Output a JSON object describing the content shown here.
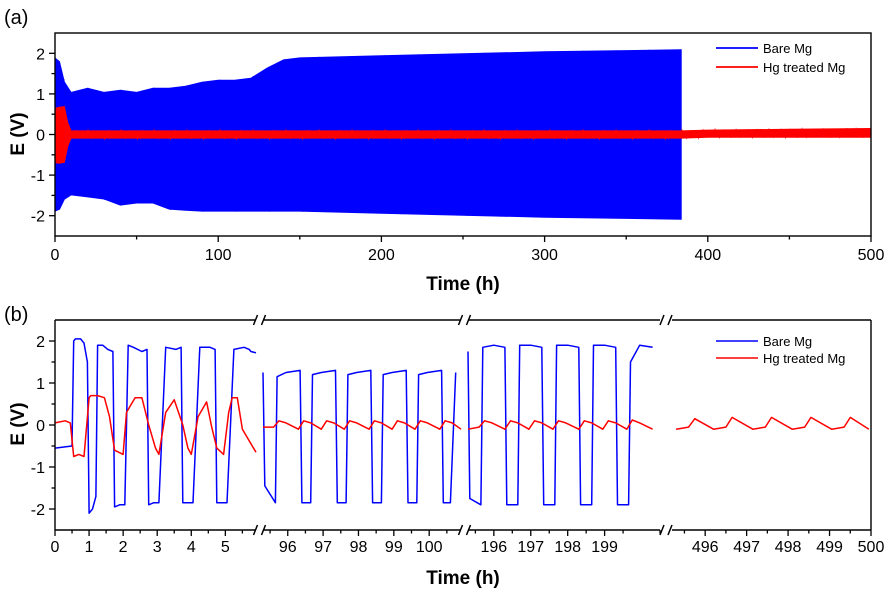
{
  "figure": {
    "panel_a_label": "(a)",
    "panel_b_label": "(b)"
  },
  "chart_data": [
    {
      "type": "line",
      "panel": "(a)",
      "xlabel": "Time (h)",
      "ylabel": "E (V)",
      "xlim": [
        0,
        500
      ],
      "ylim": [
        -2.5,
        2.5
      ],
      "x_ticks": [
        "0",
        "100",
        "200",
        "300",
        "400",
        "500"
      ],
      "y_ticks": [
        "-2",
        "-1",
        "0",
        "1",
        "2"
      ],
      "legend_position": "top-right",
      "series": [
        {
          "name": "Bare Mg",
          "color": "#0000ff",
          "style": "dense oscillation envelope",
          "x": [
            0,
            3,
            6,
            10,
            20,
            30,
            40,
            50,
            60,
            70,
            80,
            90,
            100,
            110,
            120,
            130,
            140,
            150,
            200,
            250,
            300,
            350,
            384
          ],
          "upper": [
            1.9,
            1.8,
            1.3,
            1.05,
            1.15,
            1.05,
            1.1,
            1.05,
            1.15,
            1.15,
            1.2,
            1.3,
            1.35,
            1.35,
            1.4,
            1.65,
            1.85,
            1.9,
            1.95,
            2.0,
            2.05,
            2.08,
            2.1
          ],
          "lower": [
            -1.9,
            -1.85,
            -1.6,
            -1.5,
            -1.55,
            -1.6,
            -1.75,
            -1.7,
            -1.7,
            -1.85,
            -1.88,
            -1.9,
            -1.9,
            -1.9,
            -1.9,
            -1.9,
            -1.9,
            -1.9,
            -1.95,
            -2.0,
            -2.05,
            -2.08,
            -2.1
          ]
        },
        {
          "name": "Hg treated Mg",
          "color": "#ff0000",
          "style": "dense oscillation envelope",
          "x": [
            0,
            2,
            6,
            8,
            10,
            50,
            100,
            200,
            300,
            384,
            400,
            450,
            500
          ],
          "upper": [
            0.65,
            0.68,
            0.7,
            0.3,
            0.1,
            0.1,
            0.1,
            0.1,
            0.1,
            0.1,
            0.12,
            0.14,
            0.16
          ],
          "lower": [
            -0.7,
            -0.72,
            -0.7,
            -0.3,
            -0.1,
            -0.1,
            -0.1,
            -0.1,
            -0.1,
            -0.1,
            -0.08,
            -0.08,
            -0.08
          ]
        }
      ]
    },
    {
      "type": "line",
      "panel": "(b)",
      "xlabel": "Time (h)",
      "ylabel": "E (V)",
      "ylim": [
        -2.5,
        2.5
      ],
      "y_ticks": [
        "-2",
        "-1",
        "0",
        "1",
        "2"
      ],
      "broken_x_axis": true,
      "legend_position": "top-right",
      "segments": [
        {
          "xlim": [
            0,
            5.9
          ],
          "x_ticks": [
            0,
            1,
            2,
            3,
            4,
            5
          ],
          "x_tick_labels": [
            "0",
            "1",
            "2",
            "3",
            "4",
            "5"
          ],
          "series": {
            "Bare Mg": {
              "x": [
                0,
                0.5,
                0.55,
                0.6,
                0.75,
                0.85,
                0.95,
                1.0,
                1.1,
                1.2,
                1.25,
                1.4,
                1.55,
                1.7,
                1.75,
                1.9,
                2.05,
                2.15,
                2.3,
                2.55,
                2.7,
                2.75,
                2.9,
                3.05,
                3.25,
                3.55,
                3.7,
                3.75,
                3.9,
                4.05,
                4.25,
                4.55,
                4.7,
                4.75,
                4.9,
                5.05,
                5.25,
                5.55,
                5.7,
                5.75,
                5.9
              ],
              "y": [
                -0.55,
                -0.5,
                2.0,
                2.05,
                2.05,
                1.95,
                1.5,
                -2.1,
                -2.0,
                -1.7,
                1.9,
                1.9,
                1.8,
                1.75,
                -1.95,
                -1.9,
                -1.9,
                1.9,
                1.85,
                1.75,
                1.8,
                -1.9,
                -1.85,
                -1.85,
                1.85,
                1.8,
                1.85,
                -1.85,
                -1.85,
                -1.85,
                1.85,
                1.85,
                1.8,
                -1.85,
                -1.85,
                -1.85,
                1.8,
                1.85,
                1.8,
                1.75,
                1.72
              ]
            },
            "Hg treated Mg": {
              "x": [
                0,
                0.3,
                0.45,
                0.55,
                0.7,
                0.85,
                1.0,
                1.05,
                1.25,
                1.45,
                1.6,
                1.75,
                2.0,
                2.1,
                2.35,
                2.55,
                2.75,
                2.95,
                3.05,
                3.25,
                3.5,
                3.75,
                3.9,
                4.0,
                4.2,
                4.45,
                4.6,
                4.75,
                4.95,
                5.1,
                5.2,
                5.35,
                5.5,
                5.9
              ],
              "y": [
                0.05,
                0.1,
                0.05,
                -0.75,
                -0.7,
                -0.75,
                0.65,
                0.7,
                0.7,
                0.65,
                0.2,
                -0.6,
                -0.7,
                0.3,
                0.65,
                0.65,
                0.0,
                -0.55,
                -0.7,
                0.3,
                0.6,
                0.0,
                -0.55,
                -0.7,
                0.2,
                0.55,
                -0.05,
                -0.55,
                -0.7,
                0.3,
                0.65,
                0.65,
                -0.1,
                -0.65
              ]
            }
          }
        },
        {
          "xlim": [
            95.3,
            100.9
          ],
          "x_ticks": [
            96,
            97,
            98,
            99,
            100
          ],
          "x_tick_labels": [
            "96",
            "97",
            "98",
            "99",
            "100"
          ],
          "series": {
            "Bare Mg": {
              "x": [
                95.3,
                95.35,
                95.65,
                95.7,
                95.95,
                96.35,
                96.4,
                96.65,
                96.7,
                96.95,
                97.35,
                97.4,
                97.65,
                97.7,
                97.95,
                98.35,
                98.4,
                98.65,
                98.7,
                98.95,
                99.35,
                99.4,
                99.65,
                99.7,
                99.95,
                100.35,
                100.4,
                100.6,
                100.75
              ],
              "y": [
                1.25,
                -1.45,
                -1.85,
                1.15,
                1.25,
                1.3,
                -1.85,
                -1.85,
                1.2,
                1.25,
                1.3,
                -1.85,
                -1.85,
                1.2,
                1.25,
                1.3,
                -1.85,
                -1.85,
                1.2,
                1.25,
                1.3,
                -1.85,
                -1.85,
                1.2,
                1.25,
                1.3,
                -1.85,
                -1.85,
                1.25
              ]
            },
            "Hg treated Mg": {
              "x": [
                95.3,
                95.6,
                95.75,
                95.95,
                96.3,
                96.45,
                96.65,
                96.95,
                97.1,
                97.3,
                97.6,
                97.75,
                97.95,
                98.3,
                98.45,
                98.65,
                98.95,
                99.1,
                99.3,
                99.6,
                99.75,
                99.95,
                100.3,
                100.45,
                100.65,
                100.9
              ],
              "y": [
                -0.05,
                -0.05,
                0.1,
                0.05,
                -0.1,
                0.1,
                0.05,
                -0.1,
                0.1,
                0.05,
                -0.1,
                0.1,
                0.05,
                -0.1,
                0.1,
                0.05,
                -0.1,
                0.1,
                0.05,
                -0.1,
                0.1,
                0.05,
                -0.1,
                0.1,
                0.05,
                -0.1
              ]
            }
          }
        },
        {
          "xlim": [
            195.3,
            200.5
          ],
          "x_ticks": [
            196,
            197,
            198,
            199
          ],
          "x_tick_labels": [
            "196",
            "197",
            "198",
            "199"
          ],
          "series": {
            "Bare Mg": {
              "x": [
                195.3,
                195.35,
                195.65,
                195.7,
                196.0,
                196.3,
                196.35,
                196.65,
                196.7,
                197.0,
                197.3,
                197.35,
                197.65,
                197.7,
                198.0,
                198.3,
                198.35,
                198.65,
                198.7,
                199.0,
                199.3,
                199.35,
                199.65,
                199.7,
                199.95,
                200.3
              ],
              "y": [
                1.75,
                -1.75,
                -1.9,
                1.85,
                1.9,
                1.85,
                -1.9,
                -1.9,
                1.9,
                1.9,
                1.85,
                -1.9,
                -1.9,
                1.9,
                1.9,
                1.85,
                -1.9,
                -1.9,
                1.9,
                1.9,
                1.85,
                -1.9,
                -1.9,
                1.5,
                1.9,
                1.85
              ]
            },
            "Hg treated Mg": {
              "x": [
                195.3,
                195.6,
                195.75,
                195.95,
                196.3,
                196.45,
                196.65,
                196.95,
                197.1,
                197.3,
                197.6,
                197.75,
                197.95,
                198.3,
                198.45,
                198.65,
                198.95,
                199.1,
                199.3,
                199.6,
                199.75,
                199.95,
                200.3
              ],
              "y": [
                -0.1,
                -0.05,
                0.1,
                0.05,
                -0.1,
                0.1,
                0.05,
                -0.1,
                0.1,
                0.05,
                -0.1,
                0.1,
                0.05,
                -0.1,
                0.1,
                0.05,
                -0.1,
                0.1,
                0.05,
                -0.1,
                0.12,
                0.05,
                -0.1
              ]
            }
          }
        },
        {
          "xlim": [
            495.2,
            500.0
          ],
          "x_ticks": [
            496,
            497,
            498,
            499,
            500
          ],
          "x_tick_labels": [
            "496",
            "497",
            "498",
            "499",
            "500"
          ],
          "series": {
            "Bare Mg": {
              "x": [],
              "y": []
            },
            "Hg treated Mg": {
              "x": [
                495.3,
                495.6,
                495.75,
                496.2,
                496.5,
                496.65,
                497.15,
                497.45,
                497.6,
                498.1,
                498.4,
                498.55,
                499.05,
                499.35,
                499.5,
                499.95
              ],
              "y": [
                -0.1,
                -0.05,
                0.15,
                -0.1,
                -0.05,
                0.18,
                -0.1,
                -0.05,
                0.18,
                -0.1,
                -0.05,
                0.18,
                -0.1,
                -0.05,
                0.18,
                -0.1
              ]
            }
          }
        }
      ]
    }
  ]
}
